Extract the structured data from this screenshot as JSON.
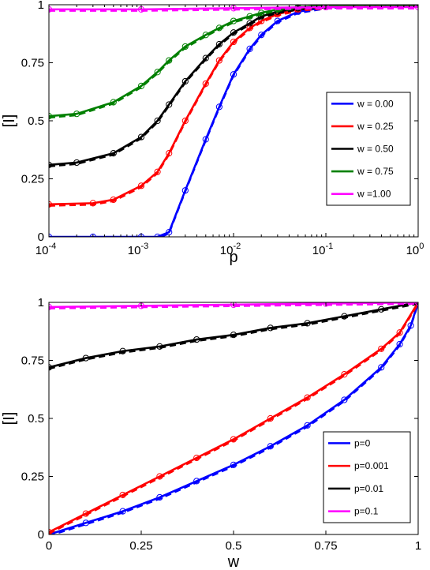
{
  "chart_data": [
    {
      "type": "line",
      "xscale": "log",
      "xlim": [
        0.0001,
        1
      ],
      "ylim": [
        0,
        1
      ],
      "xlabel": "p",
      "ylabel": "[I]",
      "grid": false,
      "legend_position": "center-right",
      "xticks": [
        0.0001,
        0.001,
        0.01,
        0.1,
        1
      ],
      "xtick_labels": [
        {
          "base": "10",
          "exp": "-4"
        },
        {
          "base": "10",
          "exp": "-3"
        },
        {
          "base": "10",
          "exp": "-2"
        },
        {
          "base": "10",
          "exp": "-1"
        },
        {
          "base": "10",
          "exp": "0"
        }
      ],
      "yticks": [
        0,
        0.25,
        0.5,
        0.75,
        1
      ],
      "ytick_labels": [
        "0",
        "0.25",
        "0.5",
        "0.75",
        "1"
      ],
      "series": [
        {
          "name": "w = 0.00",
          "color": "#0000ff",
          "x": [
            0.0001,
            0.0003,
            0.001,
            0.0015,
            0.002,
            0.003,
            0.005,
            0.007,
            0.01,
            0.015,
            0.02,
            0.03,
            0.05,
            0.1,
            0.2,
            0.5,
            1
          ],
          "y": [
            0,
            0,
            0,
            0,
            0.02,
            0.2,
            0.42,
            0.56,
            0.7,
            0.81,
            0.87,
            0.93,
            0.97,
            0.99,
            1,
            1,
            1
          ]
        },
        {
          "name": "w = 0.25",
          "color": "#ff0000",
          "x": [
            0.0001,
            0.0003,
            0.0005,
            0.001,
            0.0015,
            0.002,
            0.003,
            0.005,
            0.007,
            0.01,
            0.015,
            0.02,
            0.03,
            0.05,
            0.1,
            0.2,
            0.5,
            1
          ],
          "y": [
            0.14,
            0.145,
            0.16,
            0.22,
            0.28,
            0.36,
            0.5,
            0.66,
            0.76,
            0.84,
            0.9,
            0.93,
            0.96,
            0.98,
            0.99,
            1,
            1,
            1
          ]
        },
        {
          "name": "w = 0.50",
          "color": "#000000",
          "x": [
            0.0001,
            0.0002,
            0.0005,
            0.001,
            0.0015,
            0.002,
            0.003,
            0.005,
            0.007,
            0.01,
            0.015,
            0.02,
            0.03,
            0.05,
            0.1,
            0.2,
            0.5,
            1
          ],
          "y": [
            0.31,
            0.32,
            0.36,
            0.43,
            0.5,
            0.57,
            0.67,
            0.77,
            0.83,
            0.88,
            0.92,
            0.95,
            0.97,
            0.985,
            0.995,
            1,
            1,
            1
          ]
        },
        {
          "name": "w = 0.75",
          "color": "#008000",
          "x": [
            0.0001,
            0.0002,
            0.0005,
            0.001,
            0.0015,
            0.002,
            0.003,
            0.005,
            0.007,
            0.01,
            0.015,
            0.02,
            0.03,
            0.05,
            0.1,
            0.2,
            0.5,
            1
          ],
          "y": [
            0.52,
            0.53,
            0.58,
            0.65,
            0.71,
            0.76,
            0.82,
            0.87,
            0.9,
            0.93,
            0.95,
            0.965,
            0.98,
            0.99,
            0.997,
            1,
            1,
            1
          ]
        },
        {
          "name": "w =1.00",
          "color": "#ff00ff",
          "x": [
            0.0001,
            0.001,
            0.01,
            0.1,
            1
          ],
          "y": [
            0.98,
            0.98,
            0.985,
            0.99,
            0.99
          ]
        }
      ]
    },
    {
      "type": "line",
      "xlim": [
        0,
        1
      ],
      "ylim": [
        0,
        1
      ],
      "xlabel": "w",
      "ylabel": "[I]",
      "grid": false,
      "legend_position": "bottom-right",
      "xticks": [
        0,
        0.25,
        0.5,
        0.75,
        1
      ],
      "xtick_labels": [
        "0",
        "0.25",
        "0.5",
        "0.75",
        "1"
      ],
      "yticks": [
        0,
        0.25,
        0.5,
        0.75,
        1
      ],
      "ytick_labels": [
        "0",
        "0.25",
        "0.5",
        "0.75",
        "1"
      ],
      "series": [
        {
          "name": "p=0",
          "color": "#0000ff",
          "x": [
            0,
            0.1,
            0.2,
            0.3,
            0.4,
            0.5,
            0.6,
            0.7,
            0.8,
            0.9,
            0.95,
            0.98,
            1
          ],
          "y": [
            0,
            0.05,
            0.1,
            0.16,
            0.23,
            0.3,
            0.38,
            0.47,
            0.58,
            0.72,
            0.82,
            0.9,
            1
          ]
        },
        {
          "name": "p=0.001",
          "color": "#ff0000",
          "x": [
            0,
            0.1,
            0.2,
            0.3,
            0.4,
            0.5,
            0.6,
            0.7,
            0.8,
            0.9,
            0.95,
            1
          ],
          "y": [
            0.01,
            0.09,
            0.17,
            0.25,
            0.33,
            0.41,
            0.5,
            0.59,
            0.69,
            0.8,
            0.87,
            1
          ]
        },
        {
          "name": "p=0.01",
          "color": "#000000",
          "x": [
            0,
            0.1,
            0.2,
            0.3,
            0.4,
            0.5,
            0.6,
            0.7,
            0.8,
            0.9,
            1
          ],
          "y": [
            0.72,
            0.76,
            0.79,
            0.81,
            0.84,
            0.86,
            0.89,
            0.91,
            0.94,
            0.97,
            1
          ]
        },
        {
          "name": "p=0.1",
          "color": "#ff00ff",
          "x": [
            0,
            0.25,
            0.5,
            0.75,
            1
          ],
          "y": [
            0.98,
            0.985,
            0.99,
            0.995,
            1
          ]
        }
      ]
    }
  ]
}
